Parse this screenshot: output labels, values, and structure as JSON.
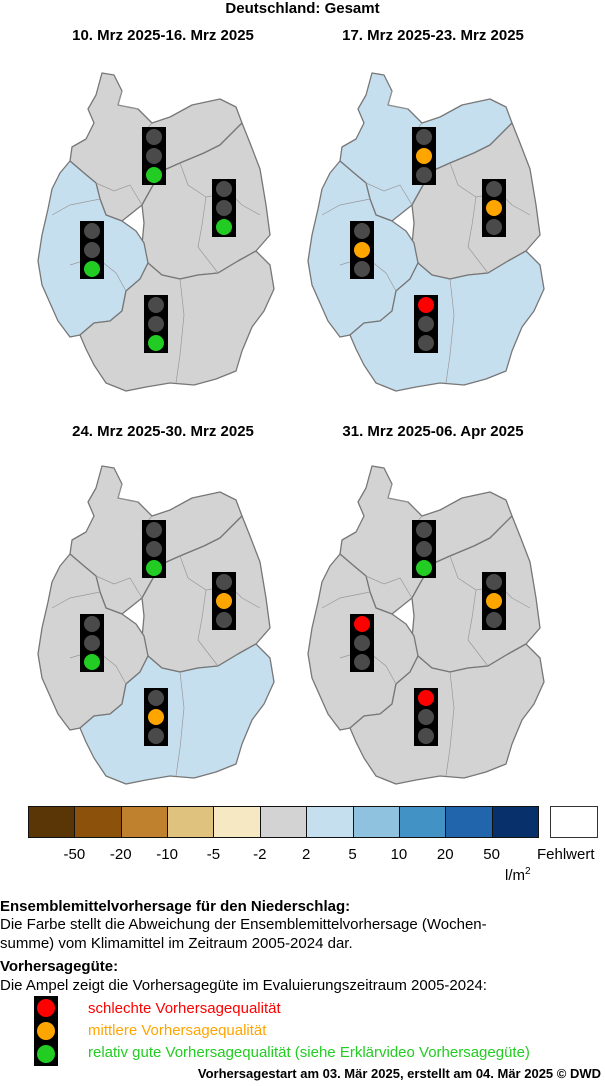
{
  "title": "Deutschland: Gesamt",
  "colors": {
    "light_blue": "#c6dfef",
    "gray": "#d3d3d3",
    "red": "#ff0000",
    "orange": "#ffa500",
    "green": "#22cc22",
    "lamp_off": "#4a4a4a"
  },
  "maps": [
    {
      "title": "10. Mrz 2025-16. Mrz 2025",
      "regions": {
        "north": "gray",
        "east": "gray",
        "west": "light_blue",
        "south": "gray"
      },
      "lights": {
        "north": "green",
        "east": "green",
        "west": "green",
        "south": "green"
      }
    },
    {
      "title": "17. Mrz 2025-23. Mrz 2025",
      "regions": {
        "north": "light_blue",
        "east": "gray",
        "west": "light_blue",
        "south": "light_blue"
      },
      "lights": {
        "north": "orange",
        "east": "orange",
        "west": "orange",
        "south": "red"
      }
    },
    {
      "title": "24. Mrz 2025-30. Mrz 2025",
      "regions": {
        "north": "gray",
        "east": "gray",
        "west": "gray",
        "south": "light_blue"
      },
      "lights": {
        "north": "green",
        "east": "orange",
        "west": "green",
        "south": "orange"
      }
    },
    {
      "title": "31. Mrz 2025-06. Apr 2025",
      "regions": {
        "north": "gray",
        "east": "gray",
        "west": "gray",
        "south": "gray"
      },
      "lights": {
        "north": "green",
        "east": "orange",
        "west": "red",
        "south": "red"
      }
    }
  ],
  "legend": {
    "colors": [
      "#5a3506",
      "#8c510a",
      "#bf812d",
      "#dfc27d",
      "#f6e8c3",
      "#d3d3d3",
      "#c6dfef",
      "#8fc2de",
      "#4292c6",
      "#2166ac",
      "#08306b"
    ],
    "ticks": [
      "-50",
      "-20",
      "-10",
      "-5",
      "-2",
      "2",
      "5",
      "10",
      "20",
      "50"
    ],
    "unit": "l/m",
    "unit_sup": "2",
    "missing_label": "Fehlwert"
  },
  "text": {
    "heading1": "Ensemblemittelvorhersage für den Niederschlag:",
    "para1_line1": "Die Farbe stellt die Abweichung der Ensemblemittelvorhersage (Wochen-",
    "para1_line2": "summe) vom Klimamittel im Zeitraum 2005-2024 dar.",
    "heading2": "Vorhersagegüte:",
    "para2": "Die Ampel zeigt die Vorhersagegüte im Evaluierungszeitraum 2005-2024:",
    "quality_bad": "schlechte Vorhersagequalität",
    "quality_mid": "mittlere Vorhersagequalität",
    "quality_good": "relativ gute Vorhersagequalität (siehe Erklärvideo Vorhersagegüte)",
    "footer": "Vorhersagestart am 03. Mär 2025, erstellt am 04. Mär 2025 © DWD"
  }
}
